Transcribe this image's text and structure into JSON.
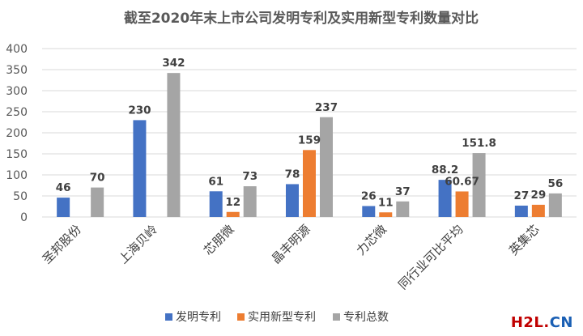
{
  "chart_data": {
    "type": "bar",
    "title": "截至2020年末上市公司发明专利及实用新型专利数量对比",
    "categories": [
      "圣邦股份",
      "上海贝岭",
      "芯朋微",
      "晶丰明源",
      "力芯微",
      "同行业可比平均",
      "英集芯"
    ],
    "series": [
      {
        "name": "发明专利",
        "color": "#4472c4",
        "values": [
          46,
          230,
          61,
          78,
          26,
          88.2,
          27
        ],
        "labels": [
          "46",
          "230",
          "61",
          "78",
          "26",
          "88.2",
          "27"
        ]
      },
      {
        "name": "实用新型专利",
        "color": "#ed7d31",
        "values": [
          null,
          null,
          12,
          159,
          11,
          60.67,
          29
        ],
        "labels": [
          "",
          "",
          "12",
          "159",
          "11",
          "60.67",
          "29"
        ]
      },
      {
        "name": "专利总数",
        "color": "#a5a5a5",
        "values": [
          70,
          342,
          73,
          237,
          37,
          151.8,
          56
        ],
        "labels": [
          "70",
          "342",
          "73",
          "237",
          "37",
          "151.8",
          "56"
        ]
      }
    ],
    "yticks": [
      "0",
      "50",
      "100",
      "150",
      "200",
      "250",
      "300",
      "350",
      "400"
    ],
    "ylim": [
      0,
      400
    ],
    "grid": true,
    "legend": "bottom"
  },
  "watermark": {
    "h2l": "H2L.",
    "cn": "CN"
  }
}
